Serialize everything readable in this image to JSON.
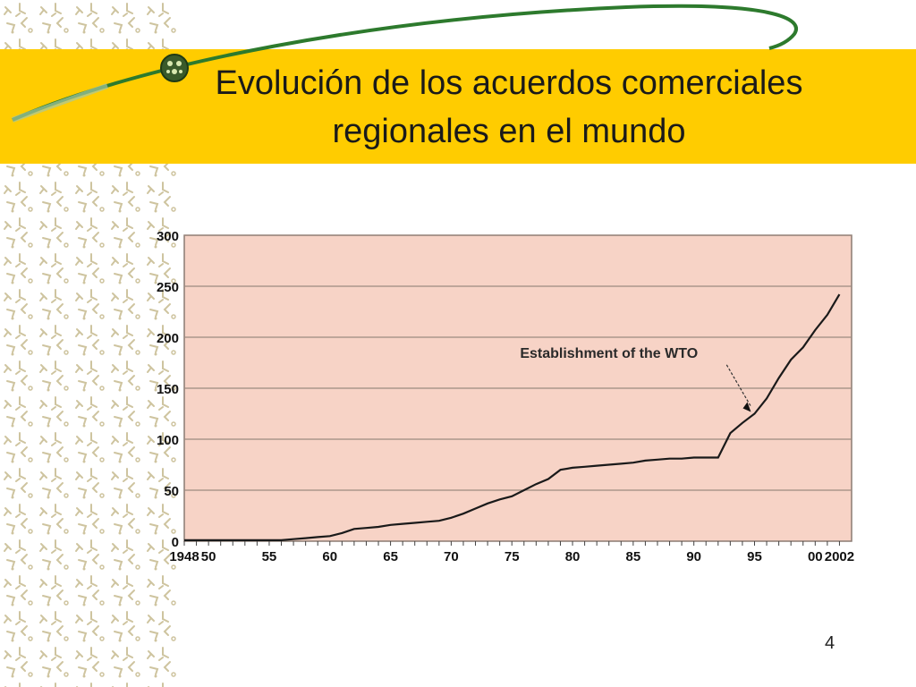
{
  "slide": {
    "title_line1": "Evolución de los acuerdos comerciales",
    "title_line2": "regionales en el mundo",
    "page_number": "4"
  },
  "colors": {
    "title_bar": "#ffcc00",
    "plot_background": "#f7d3c6",
    "line": "#1a1a1a",
    "gridline": "#9c8a80",
    "orbit": "#2d7a2d"
  },
  "chart_data": {
    "type": "line",
    "x_ticks": [
      "1948",
      "50",
      "55",
      "60",
      "65",
      "70",
      "75",
      "80",
      "85",
      "90",
      "95",
      "00",
      "2002"
    ],
    "x_tick_years": [
      1948,
      1950,
      1955,
      1960,
      1965,
      1970,
      1975,
      1980,
      1985,
      1990,
      1995,
      2000,
      2002
    ],
    "y_ticks": [
      "0",
      "50",
      "100",
      "150",
      "200",
      "250",
      "300"
    ],
    "xlim": [
      1948,
      2003
    ],
    "ylim": [
      0,
      300
    ],
    "grid": true,
    "annotation": {
      "text": "Establishment of the WTO",
      "x": 1995,
      "y": 125
    },
    "series": [
      {
        "x": [
          1948,
          1950,
          1955,
          1956,
          1957,
          1958,
          1959,
          1960,
          1961,
          1962,
          1963,
          1964,
          1965,
          1966,
          1967,
          1968,
          1969,
          1970,
          1971,
          1972,
          1973,
          1974,
          1975,
          1976,
          1977,
          1978,
          1979,
          1980,
          1981,
          1982,
          1983,
          1984,
          1985,
          1986,
          1987,
          1988,
          1989,
          1990,
          1991,
          1992,
          1993,
          1994,
          1995,
          1996,
          1997,
          1998,
          1999,
          2000,
          2001,
          2002
        ],
        "y": [
          1,
          1,
          1,
          1,
          2,
          3,
          4,
          5,
          8,
          12,
          13,
          14,
          16,
          17,
          18,
          19,
          20,
          23,
          27,
          32,
          37,
          41,
          44,
          50,
          56,
          61,
          70,
          72,
          73,
          74,
          75,
          76,
          77,
          79,
          80,
          81,
          81,
          82,
          82,
          82,
          106,
          116,
          125,
          140,
          160,
          178,
          190,
          207,
          222,
          242
        ]
      }
    ]
  }
}
